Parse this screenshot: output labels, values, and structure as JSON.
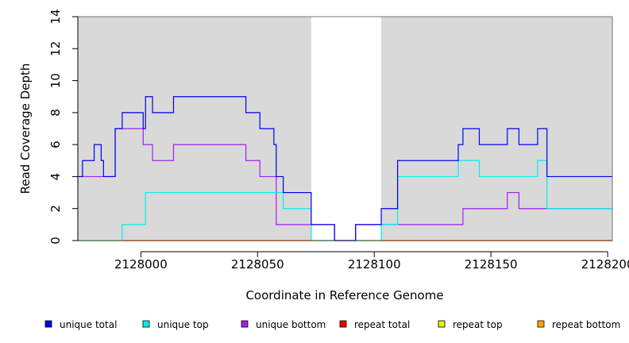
{
  "chart_data": {
    "type": "line",
    "step": true,
    "xlabel": "Coordinate in Reference Genome",
    "ylabel": "Read Coverage Depth",
    "xlim": [
      2127973,
      2128202
    ],
    "ylim": [
      0,
      14
    ],
    "xticks": [
      2128000,
      2128050,
      2128100,
      2128150,
      2128200
    ],
    "yticks": [
      0,
      2,
      4,
      6,
      8,
      10,
      12,
      14
    ],
    "background_regions": [
      {
        "from": 2127973,
        "to": 2128073,
        "color": "#d9d9d9"
      },
      {
        "from": 2128103,
        "to": 2128202,
        "color": "#d9d9d9"
      }
    ],
    "series": [
      {
        "name": "unique total",
        "color": "#0000ee",
        "x": [
          2127973,
          2127975,
          2127980,
          2127983,
          2127984,
          2127989,
          2127992,
          2128001,
          2128002,
          2128005,
          2128014,
          2128045,
          2128051,
          2128057,
          2128058,
          2128061,
          2128073,
          2128083,
          2128092,
          2128103,
          2128110,
          2128136,
          2128138,
          2128145,
          2128157,
          2128162,
          2128170,
          2128174,
          2128202
        ],
        "y": [
          4,
          5,
          6,
          5,
          4,
          7,
          8,
          7,
          9,
          8,
          9,
          8,
          7,
          6,
          4,
          3,
          1,
          0,
          1,
          2,
          5,
          6,
          7,
          6,
          7,
          6,
          7,
          4,
          4
        ]
      },
      {
        "name": "unique top",
        "color": "#00eeee",
        "x": [
          2127973,
          2127992,
          2128002,
          2128061,
          2128073,
          2128103,
          2128110,
          2128136,
          2128145,
          2128170,
          2128174,
          2128202
        ],
        "y": [
          0,
          1,
          3,
          2,
          0,
          1,
          4,
          5,
          4,
          5,
          2,
          2
        ]
      },
      {
        "name": "unique bottom",
        "color": "#a020f0",
        "x": [
          2127973,
          2127989,
          2128001,
          2128005,
          2128014,
          2128045,
          2128051,
          2128058,
          2128073,
          2128083,
          2128092,
          2128138,
          2128157,
          2128162,
          2128202
        ],
        "y": [
          4,
          7,
          6,
          5,
          6,
          5,
          4,
          1,
          1,
          0,
          1,
          2,
          3,
          2,
          2
        ]
      },
      {
        "name": "repeat total",
        "color": "#ee0000",
        "x": [
          2127973,
          2128202
        ],
        "y": [
          0,
          0
        ]
      },
      {
        "name": "repeat top",
        "color": "#eeee00",
        "x": [
          2127973,
          2128202
        ],
        "y": [
          0,
          0
        ]
      },
      {
        "name": "repeat bottom",
        "color": "#ffa500",
        "x": [
          2127973,
          2128202
        ],
        "y": [
          0,
          0
        ]
      }
    ],
    "grid": false,
    "legend_position": "bottom"
  }
}
